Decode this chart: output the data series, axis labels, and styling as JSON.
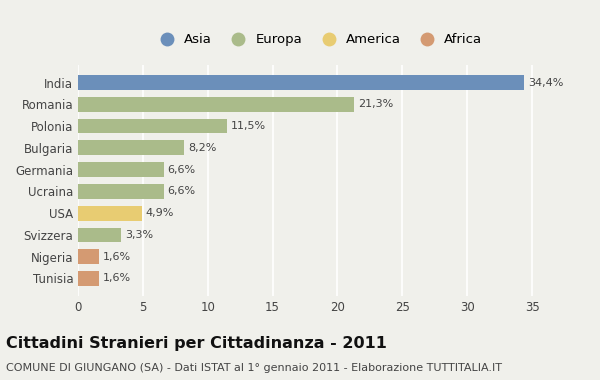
{
  "categories": [
    "India",
    "Romania",
    "Polonia",
    "Bulgaria",
    "Germania",
    "Ucraina",
    "USA",
    "Svizzera",
    "Nigeria",
    "Tunisia"
  ],
  "values": [
    34.4,
    21.3,
    11.5,
    8.2,
    6.6,
    6.6,
    4.9,
    3.3,
    1.6,
    1.6
  ],
  "labels": [
    "34,4%",
    "21,3%",
    "11,5%",
    "8,2%",
    "6,6%",
    "6,6%",
    "4,9%",
    "3,3%",
    "1,6%",
    "1,6%"
  ],
  "colors": [
    "#6b8fba",
    "#aabb8a",
    "#aabb8a",
    "#aabb8a",
    "#aabb8a",
    "#aabb8a",
    "#e8cc72",
    "#aabb8a",
    "#d49a72",
    "#d49a72"
  ],
  "legend_labels": [
    "Asia",
    "Europa",
    "America",
    "Africa"
  ],
  "legend_colors": [
    "#6b8fba",
    "#aabb8a",
    "#e8cc72",
    "#d49a72"
  ],
  "title": "Cittadini Stranieri per Cittadinanza - 2011",
  "subtitle": "COMUNE DI GIUNGANO (SA) - Dati ISTAT al 1° gennaio 2011 - Elaborazione TUTTITALIA.IT",
  "xlim": [
    0,
    37
  ],
  "xticks": [
    0,
    5,
    10,
    15,
    20,
    25,
    30,
    35
  ],
  "background_color": "#f0f0eb",
  "bar_height": 0.68,
  "title_fontsize": 11.5,
  "subtitle_fontsize": 8,
  "label_fontsize": 8,
  "tick_fontsize": 8.5,
  "legend_fontsize": 9.5
}
